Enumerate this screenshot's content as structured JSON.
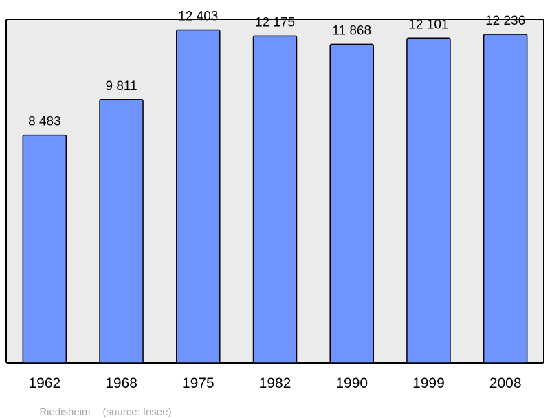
{
  "chart_data": {
    "type": "bar",
    "title": "",
    "xlabel": "",
    "ylabel": "",
    "categories": [
      "1962",
      "1968",
      "1975",
      "1982",
      "1990",
      "1999",
      "2008"
    ],
    "values": [
      8483,
      9811,
      12403,
      12175,
      11868,
      12101,
      12236
    ],
    "value_labels": [
      "8 483",
      "9 811",
      "12 403",
      "12 175",
      "11 868",
      "12 101",
      "12 236"
    ],
    "ylim": [
      0,
      12800
    ],
    "grid": false,
    "legend": "none",
    "colors": {
      "bar_fill": "#7094ff",
      "bar_stroke": "#000000",
      "plot_background": "#ebebeb",
      "frame": "#000000"
    }
  },
  "footer": {
    "place": "Riedisheim",
    "source": "(source: Insee)"
  }
}
